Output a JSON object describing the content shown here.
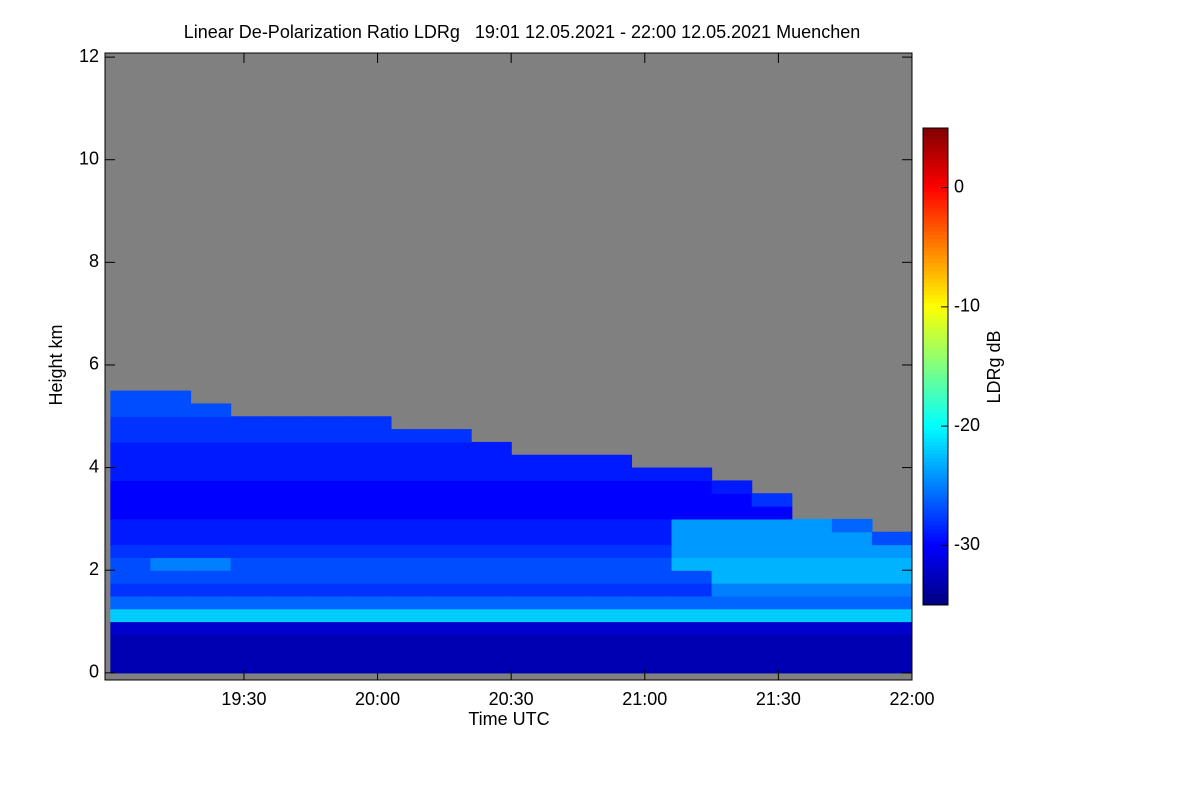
{
  "chart_data": {
    "type": "heatmap",
    "title": "Linear De-Polarization Ratio LDRg   19:01 12.05.2021 - 22:00 12.05.2021 Muenchen",
    "x_label": "Time UTC",
    "y_label": "Height km",
    "colorbar_label": "LDRg dB",
    "colormap": "jet",
    "no_data_color": "#808080",
    "xlim": [
      18.98,
      22.0
    ],
    "xticks": [
      {
        "value": 19.5,
        "label": "19:30"
      },
      {
        "value": 20.0,
        "label": "20:00"
      },
      {
        "value": 20.5,
        "label": "20:30"
      },
      {
        "value": 21.0,
        "label": "21:00"
      },
      {
        "value": 21.5,
        "label": "21:30"
      },
      {
        "value": 22.0,
        "label": "22:00"
      }
    ],
    "ylim": [
      -0.14,
      12.08
    ],
    "yticks": [
      0,
      2,
      4,
      6,
      8,
      10,
      12
    ],
    "clim": [
      -35,
      5
    ],
    "cticks": [
      -30,
      -20,
      -10,
      0
    ],
    "x": [
      19.075,
      19.225,
      19.375,
      19.525,
      19.675,
      19.825,
      19.975,
      20.125,
      20.275,
      20.425,
      20.575,
      20.725,
      20.875,
      21.025,
      21.175,
      21.325,
      21.475,
      21.625,
      21.775,
      21.925
    ],
    "y": [
      0.125,
      0.375,
      0.625,
      0.875,
      1.125,
      1.375,
      1.625,
      1.875,
      2.125,
      2.375,
      2.625,
      2.875,
      3.125,
      3.375,
      3.625,
      3.875,
      4.125,
      4.375,
      4.625,
      4.875,
      5.125,
      5.375
    ],
    "z": [
      [
        -33,
        -33,
        -33,
        -33,
        -33,
        -33,
        -33,
        -33,
        -33,
        -33,
        -33,
        -33,
        -33,
        -33,
        -33,
        -33,
        -33,
        -33,
        -33,
        -33
      ],
      [
        -33,
        -33,
        -33,
        -33,
        -33,
        -33,
        -33,
        -33,
        -33,
        -33,
        -33,
        -33,
        -33,
        -33,
        -33,
        -33,
        -33,
        -33,
        -33,
        -33
      ],
      [
        -33,
        -33,
        -33,
        -33,
        -33,
        -33,
        -33,
        -33,
        -33,
        -33,
        -33,
        -33,
        -33,
        -33,
        -33,
        -33,
        -33,
        -33,
        -33,
        -33
      ],
      [
        -32,
        -32,
        -32,
        -32,
        -32,
        -32,
        -32,
        -32,
        -32,
        -32,
        -32,
        -32,
        -32,
        -32,
        -32,
        -32,
        -32,
        -32,
        -32,
        -32
      ],
      [
        -22,
        -22,
        -22,
        -22,
        -22,
        -22,
        -22,
        -22,
        -22,
        -22,
        -22,
        -22,
        -22,
        -22,
        -22,
        -22,
        -22,
        -22,
        -22,
        -22
      ],
      [
        -26,
        -26,
        -26,
        -26,
        -26,
        -26,
        -26,
        -26,
        -26,
        -26,
        -26,
        -26,
        -26,
        -26,
        -26,
        -26,
        -26,
        -26,
        -26,
        -26
      ],
      [
        -28,
        -28,
        -28,
        -28,
        -28,
        -28,
        -28,
        -28,
        -28,
        -28,
        -28,
        -28,
        -28,
        -28,
        -28,
        -25,
        -25,
        -25,
        -25,
        -25
      ],
      [
        -27,
        -27,
        -27,
        -27,
        -27,
        -27,
        -27,
        -27,
        -27,
        -27,
        -27,
        -27,
        -27,
        -27,
        -27,
        -23,
        -23,
        -23,
        -23,
        -23
      ],
      [
        -27,
        -25,
        -25,
        -27,
        -27,
        -27,
        -27,
        -27,
        -27,
        -27,
        -27,
        -27,
        -27,
        -27,
        -23,
        -23,
        -23,
        -23,
        -23,
        -23
      ],
      [
        -28,
        -28,
        -28,
        -28,
        -28,
        -28,
        -28,
        -28,
        -28,
        -28,
        -28,
        -28,
        -28,
        -28,
        -24,
        -24,
        -24,
        -24,
        -24,
        -24
      ],
      [
        -29,
        -29,
        -29,
        -29,
        -29,
        -29,
        -29,
        -29,
        -29,
        -29,
        -29,
        -29,
        -29,
        -29,
        -24,
        -24,
        -24,
        -24,
        -24,
        -27
      ],
      [
        -29,
        -29,
        -29,
        -29,
        -29,
        -29,
        -29,
        -29,
        -29,
        -29,
        -29,
        -29,
        -29,
        -29,
        -24,
        -24,
        -24,
        -24,
        -26,
        null
      ],
      [
        -30,
        -30,
        -30,
        -30,
        -30,
        -30,
        -30,
        -30,
        -30,
        -30,
        -30,
        -30,
        -30,
        -30,
        -30,
        -30,
        -30,
        null,
        null,
        null
      ],
      [
        -30,
        -30,
        -30,
        -30,
        -30,
        -30,
        -30,
        -30,
        -30,
        -30,
        -30,
        -30,
        -30,
        -30,
        -30,
        -30,
        -28,
        null,
        null,
        null
      ],
      [
        -30,
        -30,
        -30,
        -30,
        -30,
        -30,
        -30,
        -30,
        -30,
        -30,
        -30,
        -30,
        -30,
        -30,
        -30,
        -29,
        null,
        null,
        null,
        null
      ],
      [
        -29,
        -29,
        -29,
        -29,
        -29,
        -29,
        -29,
        -29,
        -29,
        -29,
        -29,
        -29,
        -29,
        -29,
        -29,
        null,
        null,
        null,
        null,
        null
      ],
      [
        -29,
        -29,
        -29,
        -29,
        -29,
        -29,
        -29,
        -29,
        -29,
        -29,
        -29,
        -29,
        -29,
        null,
        null,
        null,
        null,
        null,
        null,
        null
      ],
      [
        -29,
        -29,
        -29,
        -29,
        -29,
        -29,
        -29,
        -29,
        -29,
        -29,
        null,
        null,
        null,
        null,
        null,
        null,
        null,
        null,
        null,
        null
      ],
      [
        -28,
        -28,
        -28,
        -28,
        -28,
        -28,
        -28,
        -28,
        -28,
        null,
        null,
        null,
        null,
        null,
        null,
        null,
        null,
        null,
        null,
        null
      ],
      [
        -28,
        -28,
        -28,
        -28,
        -28,
        -28,
        -28,
        null,
        null,
        null,
        null,
        null,
        null,
        null,
        null,
        null,
        null,
        null,
        null,
        null
      ],
      [
        -27,
        -27,
        -27,
        null,
        null,
        null,
        null,
        null,
        null,
        null,
        null,
        null,
        null,
        null,
        null,
        null,
        null,
        null,
        null,
        null
      ],
      [
        -27,
        -27,
        null,
        null,
        null,
        null,
        null,
        null,
        null,
        null,
        null,
        null,
        null,
        null,
        null,
        null,
        null,
        null,
        null,
        null
      ]
    ]
  }
}
